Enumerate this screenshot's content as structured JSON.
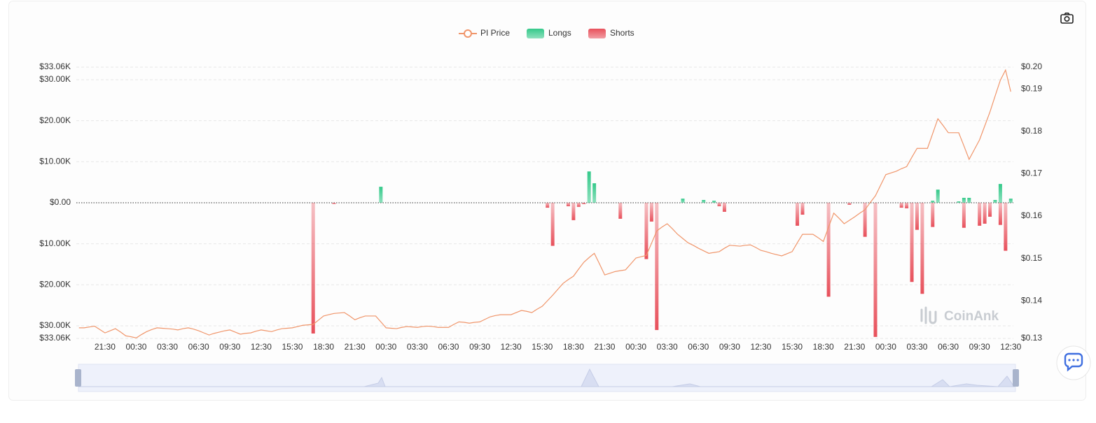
{
  "chart_data": {
    "type": "bar",
    "legend": "top",
    "grid": true,
    "watermark": "CoinAnk",
    "categories": [
      null,
      null,
      null,
      null,
      null,
      "21:30",
      null,
      null,
      null,
      null,
      null,
      "00:30",
      null,
      null,
      null,
      null,
      null,
      "03:30",
      null,
      null,
      null,
      null,
      null,
      "06:30",
      null,
      null,
      null,
      null,
      null,
      "09:30",
      null,
      null,
      null,
      null,
      null,
      "12:30",
      null,
      null,
      null,
      null,
      null,
      "15:30",
      null,
      null,
      null,
      null,
      null,
      "18:30",
      null,
      null,
      null,
      null,
      null,
      "21:30",
      null,
      null,
      null,
      null,
      null,
      "00:30",
      null,
      null,
      null,
      null,
      null,
      "03:30",
      null,
      null,
      null,
      null,
      null,
      "06:30",
      null,
      null,
      null,
      null,
      null,
      "09:30",
      null,
      null,
      null,
      null,
      null,
      "12:30",
      null,
      null,
      null,
      null,
      null,
      "15:30",
      null,
      null,
      null,
      null,
      null,
      "18:30",
      null,
      null,
      null,
      null,
      null,
      "21:30",
      null,
      null,
      null,
      null,
      null,
      "00:30",
      null,
      null,
      null,
      null,
      null,
      "03:30",
      null,
      null,
      null,
      null,
      null,
      "06:30",
      null,
      null,
      null,
      null,
      null,
      "09:30",
      null,
      null,
      null,
      null,
      null,
      "12:30",
      null,
      null,
      null,
      null,
      null,
      "15:30",
      null,
      null,
      null,
      null,
      null,
      "18:30",
      null,
      null,
      null,
      null,
      null,
      "21:30",
      null,
      null,
      null,
      null,
      null,
      "00:30",
      null,
      null,
      null,
      null,
      null,
      "03:30",
      null,
      null,
      null,
      null,
      null,
      "06:30",
      null,
      null,
      null,
      null,
      null,
      "09:30",
      null,
      null,
      null,
      null,
      null,
      "12:30"
    ],
    "ylim": [
      -33060,
      33060
    ],
    "yticks": [
      {
        "value": 33060,
        "label": "$33.06K"
      },
      {
        "value": 30000,
        "label": "$30.00K"
      },
      {
        "value": 20000,
        "label": "$20.00K"
      },
      {
        "value": 10000,
        "label": "$10.00K"
      },
      {
        "value": 0,
        "label": "$0.00"
      },
      {
        "value": -10000,
        "label": "$10.00K"
      },
      {
        "value": -20000,
        "label": "$20.00K"
      },
      {
        "value": -30000,
        "label": "$30.00K"
      },
      {
        "value": -33060,
        "label": "$33.06K"
      }
    ],
    "y2lim": [
      0.1311,
      0.1952
    ],
    "y2ticks": [
      {
        "value": 0.1952,
        "label": "$0.20"
      },
      {
        "value": 0.19,
        "label": "$0.19"
      },
      {
        "value": 0.18,
        "label": "$0.18"
      },
      {
        "value": 0.17,
        "label": "$0.17"
      },
      {
        "value": 0.16,
        "label": "$0.16"
      },
      {
        "value": 0.15,
        "label": "$0.15"
      },
      {
        "value": 0.14,
        "label": "$0.14"
      },
      {
        "value": 0.1311,
        "label": "$0.13"
      }
    ],
    "series": [
      {
        "name": "PI Price",
        "type": "line",
        "axis": "y2",
        "color": "#f0956a",
        "values": [
          0.1336,
          0.1336,
          0.1338,
          0.134,
          0.1332,
          0.1324,
          0.1329,
          0.1334,
          0.1326,
          0.1317,
          0.1315,
          0.1312,
          0.132,
          0.1327,
          0.1332,
          0.1336,
          0.1335,
          0.1334,
          0.1333,
          0.1331,
          0.1334,
          0.1336,
          0.1333,
          0.1329,
          0.1324,
          0.1319,
          0.1323,
          0.1326,
          0.1329,
          0.1331,
          0.1326,
          0.1321,
          0.1323,
          0.1324,
          0.1328,
          0.1331,
          0.1329,
          0.1327,
          0.1331,
          0.1334,
          0.1335,
          0.1336,
          0.1339,
          0.1342,
          0.1343,
          0.1344,
          0.1354,
          0.1364,
          0.1367,
          0.137,
          0.1371,
          0.1372,
          0.1364,
          0.1355,
          0.136,
          0.1364,
          0.1364,
          0.1364,
          0.135,
          0.1336,
          0.1335,
          0.1334,
          0.1337,
          0.1339,
          0.1338,
          0.1337,
          0.1339,
          0.134,
          0.1339,
          0.1337,
          0.1337,
          0.1337,
          0.1344,
          0.135,
          0.1349,
          0.1347,
          0.1349,
          0.135,
          0.1356,
          0.1362,
          0.1365,
          0.1367,
          0.1367,
          0.1367,
          0.1372,
          0.1377,
          0.1375,
          0.1372,
          0.138,
          0.1387,
          0.14,
          0.1413,
          0.1427,
          0.1441,
          0.145,
          0.1458,
          0.1475,
          0.1491,
          0.1502,
          0.1512,
          0.1487,
          0.1461,
          0.1465,
          0.1469,
          0.1471,
          0.1473,
          0.1487,
          0.1501,
          0.1504,
          0.1507,
          0.1536,
          0.1565,
          0.1574,
          0.1582,
          0.157,
          0.1557,
          0.1547,
          0.1537,
          0.1531,
          0.1524,
          0.1518,
          0.1512,
          0.1514,
          0.1516,
          0.1524,
          0.1531,
          0.153,
          0.1529,
          0.1531,
          0.1532,
          0.1526,
          0.1519,
          0.1516,
          0.1512,
          0.1509,
          0.1506,
          0.1511,
          0.1516,
          0.1537,
          0.1557,
          0.1557,
          0.1557,
          0.1549,
          0.154,
          0.1574,
          0.1607,
          0.1595,
          0.1582,
          0.159,
          0.1598,
          0.1607,
          0.1615,
          0.1632,
          0.1648,
          0.1673,
          0.1698,
          0.1702,
          0.1706,
          0.1712,
          0.1717,
          0.1739,
          0.176,
          0.176,
          0.176,
          0.1795,
          0.183,
          0.1814,
          0.1797,
          0.1797,
          0.1797,
          0.1766,
          0.1734,
          0.1757,
          0.178,
          0.1813,
          0.1846,
          0.1884,
          0.1921,
          0.1945,
          0.1894
        ]
      },
      {
        "name": "Longs",
        "type": "bar",
        "color": "#34c98a",
        "values": [
          0,
          0,
          0,
          0,
          0,
          0,
          0,
          0,
          0,
          0,
          0,
          0,
          0,
          0,
          0,
          0,
          0,
          0,
          0,
          0,
          0,
          0,
          0,
          0,
          0,
          0,
          0,
          0,
          0,
          0,
          0,
          0,
          0,
          0,
          0,
          0,
          0,
          0,
          0,
          0,
          0,
          0,
          0,
          0,
          0,
          0,
          0,
          0,
          0,
          0,
          0,
          0,
          0,
          0,
          0,
          0,
          0,
          0,
          3900,
          0,
          0,
          0,
          0,
          0,
          0,
          0,
          0,
          0,
          0,
          0,
          0,
          0,
          0,
          0,
          0,
          0,
          0,
          0,
          0,
          0,
          0,
          0,
          0,
          0,
          0,
          0,
          0,
          0,
          0,
          0,
          0,
          0,
          0,
          0,
          0,
          0,
          0,
          0,
          7630,
          4750,
          0,
          0,
          0,
          0,
          0,
          0,
          0,
          0,
          0,
          0,
          0,
          0,
          0,
          0,
          0,
          0,
          1000,
          0,
          0,
          0,
          680,
          0,
          500,
          0,
          0,
          0,
          0,
          0,
          0,
          0,
          0,
          0,
          0,
          0,
          0,
          0,
          0,
          0,
          0,
          0,
          0,
          0,
          0,
          0,
          0,
          0,
          0,
          0,
          0,
          0,
          0,
          0,
          0,
          0,
          0,
          0,
          0,
          0,
          0,
          0,
          0,
          0,
          0,
          0,
          500,
          3200,
          0,
          0,
          0,
          340,
          1200,
          1200,
          0,
          0,
          0,
          0,
          680,
          4580,
          0,
          1000
        ]
      },
      {
        "name": "Shorts",
        "type": "bar",
        "color": "#e8505b",
        "values": [
          0,
          0,
          0,
          0,
          0,
          0,
          0,
          0,
          0,
          0,
          0,
          0,
          0,
          0,
          0,
          0,
          0,
          0,
          0,
          0,
          0,
          0,
          0,
          0,
          0,
          0,
          0,
          0,
          0,
          0,
          0,
          0,
          0,
          0,
          0,
          0,
          0,
          0,
          0,
          0,
          0,
          0,
          0,
          0,
          0,
          -31870,
          0,
          0,
          0,
          -300,
          0,
          0,
          0,
          0,
          0,
          0,
          0,
          0,
          0,
          0,
          0,
          0,
          0,
          0,
          0,
          0,
          0,
          0,
          0,
          0,
          0,
          0,
          0,
          0,
          0,
          0,
          0,
          0,
          0,
          0,
          0,
          0,
          0,
          0,
          0,
          0,
          0,
          0,
          0,
          0,
          -1200,
          -10500,
          0,
          0,
          -850,
          -4240,
          -1000,
          -340,
          0,
          0,
          0,
          0,
          0,
          0,
          -3900,
          0,
          0,
          0,
          0,
          -13730,
          -4580,
          -31020,
          0,
          0,
          0,
          0,
          0,
          0,
          0,
          0,
          0,
          0,
          0,
          -850,
          -2200,
          0,
          0,
          0,
          0,
          0,
          0,
          0,
          0,
          0,
          0,
          0,
          0,
          0,
          -5600,
          -2900,
          0,
          0,
          0,
          0,
          -22900,
          0,
          0,
          0,
          -500,
          0,
          0,
          -8300,
          0,
          -32700,
          0,
          0,
          0,
          0,
          -1200,
          -1350,
          -19300,
          -6600,
          -22200,
          0,
          -5900,
          0,
          0,
          0,
          0,
          0,
          -6100,
          0,
          0,
          -5600,
          -5100,
          -3400,
          0,
          -5400,
          -11700,
          0
        ]
      }
    ]
  }
}
